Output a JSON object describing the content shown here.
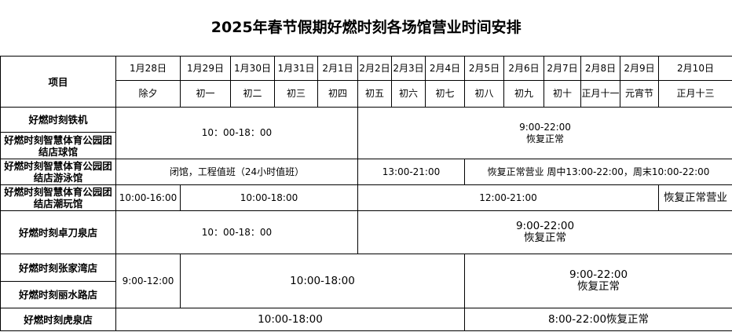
{
  "title": "2025年春节假期好燃时刻各场馆营业时间安排",
  "header": {
    "item_label": "项目",
    "dates": [
      "1月28日",
      "1月29日",
      "1月30日",
      "1月31日",
      "2月1日",
      "2月2日",
      "2月3日",
      "2月4日",
      "2月5日",
      "2月6日",
      "2月7日",
      "2月8日",
      "2月9日",
      "2月10日"
    ],
    "lunar": [
      "除夕",
      "初一",
      "初二",
      "初三",
      "初四",
      "初五",
      "初六",
      "初七",
      "初八",
      "初九",
      "初十",
      "正月十一",
      "元宵节",
      "正月十三"
    ]
  },
  "rows": {
    "tieji": {
      "name": "好燃时刻铁机"
    },
    "qiuguan": {
      "name": "好燃时刻智慧体育公园团结店球馆"
    },
    "group1": {
      "a": "10：00-18：00",
      "b": "9:00-22:00\n恢复正常"
    },
    "youyong": {
      "name": "好燃时刻智慧体育公园团结店游泳馆",
      "a": "闭馆，工程值班（24小时值班）",
      "b": "13:00-21:00",
      "c": "恢复正常营业 周中13:00-22:00，周末10:00-22:00"
    },
    "chaowan": {
      "name": "好燃时刻智慧体育公园团结店潮玩馆",
      "a": "10:00-16:00",
      "b": "10:00-18:00",
      "c": "12:00-21:00",
      "d": "恢复正常营业"
    },
    "zhuodaoquan": {
      "name": "好燃时刻卓刀泉店",
      "a": "10：00-18：00",
      "b": "9:00-22:00\n恢复正常"
    },
    "zhangjiawan": {
      "name": "好燃时刻张家湾店"
    },
    "lishuilu": {
      "name": "好燃时刻丽水路店"
    },
    "group2": {
      "a": "9:00-12:00",
      "b": "10:00-18:00",
      "c": "9:00-22:00\n恢复正常"
    },
    "huquan": {
      "name": "好燃时刻虎泉店",
      "a": "10:00-18:00",
      "b": "8:00-22:00恢复正常"
    }
  }
}
